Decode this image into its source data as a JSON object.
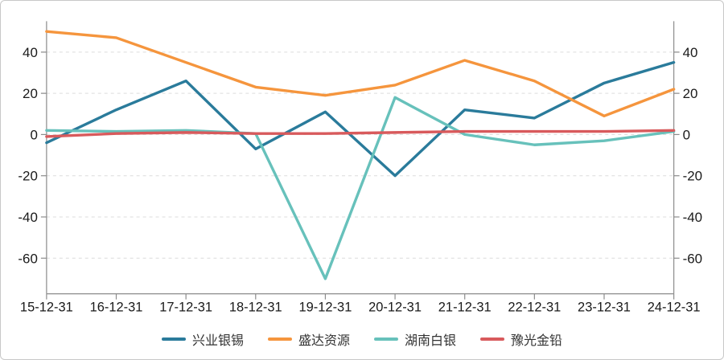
{
  "chart_data": {
    "type": "line",
    "x": [
      "15-12-31",
      "16-12-31",
      "17-12-31",
      "18-12-31",
      "19-12-31",
      "20-12-31",
      "21-12-31",
      "22-12-31",
      "23-12-31",
      "24-12-31"
    ],
    "series": [
      {
        "name": "兴业银锡",
        "color": "#2a7b9b",
        "values": [
          -4,
          12,
          26,
          -7,
          11,
          -20,
          12,
          8,
          25,
          35
        ]
      },
      {
        "name": "盛达资源",
        "color": "#f5953d",
        "values": [
          50,
          47,
          35,
          23,
          19,
          24,
          36,
          26,
          9,
          22
        ]
      },
      {
        "name": "湖南白银",
        "color": "#67c1bb",
        "values": [
          2,
          1.5,
          2,
          0.5,
          -70,
          18,
          0,
          -5,
          -3,
          1.5
        ]
      },
      {
        "name": "豫光金铅",
        "color": "#d85a5c",
        "values": [
          -1,
          0.5,
          1,
          0.5,
          0.5,
          1,
          1.5,
          1.5,
          1.5,
          2
        ]
      }
    ],
    "yticks": [
      40,
      20,
      0,
      -20,
      -40,
      -60
    ],
    "ylim": [
      -77.3,
      55
    ],
    "xlabel": "",
    "ylabel": "",
    "grid": "horizontal-dashed",
    "dual_y_axis": true,
    "legend_position": "bottom"
  },
  "colors": {
    "axis": "#8c8c8c",
    "grid": "#dcdcdc",
    "tick_label": "#1a1a1a",
    "legend_text": "#333333",
    "border": "#c8c8c8",
    "background": "#ffffff"
  }
}
